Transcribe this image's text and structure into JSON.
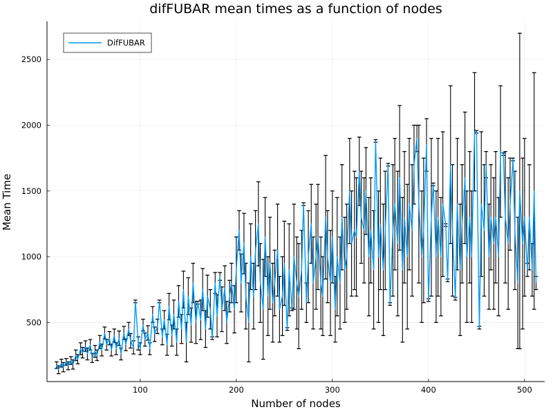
{
  "chart_data": {
    "type": "line",
    "title": "difFUBAR mean times as a function of nodes",
    "xlabel": "Number of nodes",
    "ylabel": "Mean Time",
    "xlim": [
      3,
      521
    ],
    "ylim": [
      50,
      2790
    ],
    "xticks": [
      100,
      200,
      300,
      400,
      500
    ],
    "yticks": [
      500,
      1000,
      1500,
      2000,
      2500
    ],
    "grid": true,
    "legend_position": "top-left",
    "line_color": "#009af9",
    "error_bar_color": "#000000",
    "error_bars": true,
    "series": [
      {
        "name": "DifFUBAR",
        "points": [
          [
            13,
            175,
            25
          ],
          [
            15,
            140,
            30
          ],
          [
            18,
            190,
            30
          ],
          [
            20,
            160,
            35
          ],
          [
            23,
            200,
            25
          ],
          [
            25,
            170,
            30
          ],
          [
            28,
            210,
            30
          ],
          [
            30,
            180,
            35
          ],
          [
            33,
            250,
            40
          ],
          [
            35,
            220,
            35
          ],
          [
            38,
            300,
            45
          ],
          [
            40,
            270,
            40
          ],
          [
            43,
            320,
            40
          ],
          [
            45,
            260,
            45
          ],
          [
            48,
            330,
            40
          ],
          [
            50,
            230,
            35
          ],
          [
            53,
            280,
            45
          ],
          [
            55,
            250,
            40
          ],
          [
            58,
            350,
            50
          ],
          [
            60,
            290,
            45
          ],
          [
            63,
            420,
            45
          ],
          [
            65,
            330,
            40
          ],
          [
            68,
            380,
            50
          ],
          [
            70,
            290,
            45
          ],
          [
            73,
            400,
            50
          ],
          [
            75,
            300,
            45
          ],
          [
            78,
            380,
            55
          ],
          [
            80,
            260,
            45
          ],
          [
            83,
            420,
            50
          ],
          [
            85,
            330,
            45
          ],
          [
            88,
            450,
            50
          ],
          [
            90,
            360,
            55
          ],
          [
            93,
            310,
            50
          ],
          [
            95,
            660,
            10
          ],
          [
            98,
            340,
            50
          ],
          [
            100,
            300,
            45
          ],
          [
            103,
            480,
            45
          ],
          [
            105,
            370,
            50
          ],
          [
            108,
            420,
            55
          ],
          [
            110,
            300,
            45
          ],
          [
            113,
            560,
            60
          ],
          [
            115,
            410,
            55
          ],
          [
            118,
            470,
            55
          ],
          [
            120,
            660,
            10
          ],
          [
            123,
            390,
            60
          ],
          [
            125,
            520,
            70
          ],
          [
            128,
            330,
            80
          ],
          [
            130,
            620,
            100
          ],
          [
            133,
            400,
            80
          ],
          [
            135,
            560,
            110
          ],
          [
            138,
            350,
            100
          ],
          [
            140,
            660,
            120
          ],
          [
            143,
            450,
            110
          ],
          [
            145,
            750,
            140
          ],
          [
            148,
            350,
            150
          ],
          [
            150,
            700,
            140
          ],
          [
            153,
            480,
            130
          ],
          [
            155,
            800,
            150
          ],
          [
            158,
            500,
            160
          ],
          [
            160,
            650,
            10
          ],
          [
            163,
            520,
            150
          ],
          [
            165,
            750,
            160
          ],
          [
            168,
            450,
            140
          ],
          [
            170,
            700,
            160
          ],
          [
            173,
            600,
            150
          ],
          [
            175,
            380,
            10
          ],
          [
            178,
            800,
            80
          ],
          [
            180,
            550,
            160
          ],
          [
            183,
            850,
            30
          ],
          [
            185,
            600,
            170
          ],
          [
            188,
            760,
            170
          ],
          [
            190,
            500,
            160
          ],
          [
            193,
            700,
            120
          ],
          [
            195,
            800,
            150
          ],
          [
            198,
            600,
            180
          ],
          [
            200,
            900,
            250
          ],
          [
            203,
            1200,
            150
          ],
          [
            205,
            800,
            220
          ],
          [
            208,
            1100,
            230
          ],
          [
            210,
            700,
            250
          ],
          [
            213,
            500,
            300
          ],
          [
            215,
            1000,
            250
          ],
          [
            218,
            700,
            250
          ],
          [
            220,
            1050,
            300
          ],
          [
            223,
            1250,
            320
          ],
          [
            225,
            800,
            300
          ],
          [
            228,
            600,
            380
          ],
          [
            230,
            1150,
            300
          ],
          [
            233,
            700,
            300
          ],
          [
            235,
            950,
            350
          ],
          [
            238,
            650,
            300
          ],
          [
            240,
            800,
            250
          ],
          [
            243,
            1050,
            350
          ],
          [
            245,
            600,
            250
          ],
          [
            248,
            700,
            300
          ],
          [
            250,
            950,
            320
          ],
          [
            253,
            450,
            10
          ],
          [
            255,
            900,
            350
          ],
          [
            258,
            600,
            10
          ],
          [
            260,
            1000,
            400
          ],
          [
            263,
            800,
            350
          ],
          [
            265,
            700,
            400
          ],
          [
            268,
            900,
            300
          ],
          [
            270,
            1400,
            10
          ],
          [
            273,
            650,
            150
          ],
          [
            275,
            1000,
            350
          ],
          [
            278,
            1250,
            300
          ],
          [
            280,
            800,
            350
          ],
          [
            283,
            1000,
            400
          ],
          [
            285,
            1150,
            400
          ],
          [
            288,
            800,
            350
          ],
          [
            290,
            700,
            300
          ],
          [
            293,
            1300,
            470
          ],
          [
            295,
            1000,
            350
          ],
          [
            298,
            800,
            400
          ],
          [
            300,
            1150,
            350
          ],
          [
            303,
            600,
            250
          ],
          [
            305,
            1000,
            450
          ],
          [
            308,
            800,
            350
          ],
          [
            310,
            1300,
            400
          ],
          [
            313,
            900,
            400
          ],
          [
            315,
            1000,
            400
          ],
          [
            318,
            1500,
            400
          ],
          [
            320,
            1100,
            400
          ],
          [
            323,
            1200,
            450
          ],
          [
            325,
            1150,
            450
          ],
          [
            328,
            1650,
            260
          ],
          [
            330,
            1300,
            350
          ],
          [
            333,
            1200,
            400
          ],
          [
            335,
            1500,
            330
          ],
          [
            338,
            1000,
            450
          ],
          [
            340,
            1200,
            400
          ],
          [
            343,
            900,
            450
          ],
          [
            345,
            1880,
            10
          ],
          [
            348,
            1000,
            500
          ],
          [
            350,
            1250,
            500
          ],
          [
            353,
            900,
            500
          ],
          [
            355,
            1200,
            450
          ],
          [
            358,
            1700,
            10
          ],
          [
            360,
            640,
            10
          ],
          [
            363,
            1200,
            500
          ],
          [
            365,
            1400,
            500
          ],
          [
            368,
            1100,
            550
          ],
          [
            370,
            1600,
            550
          ],
          [
            373,
            900,
            550
          ],
          [
            375,
            1300,
            500
          ],
          [
            378,
            1000,
            550
          ],
          [
            380,
            1400,
            500
          ],
          [
            383,
            1200,
            500
          ],
          [
            385,
            1700,
            300
          ],
          [
            388,
            1900,
            100
          ],
          [
            390,
            1400,
            600
          ],
          [
            393,
            1000,
            500
          ],
          [
            395,
            1200,
            550
          ],
          [
            398,
            1850,
            200
          ],
          [
            400,
            670,
            10
          ],
          [
            403,
            1300,
            600
          ],
          [
            405,
            1550,
            10
          ],
          [
            408,
            1000,
            500
          ],
          [
            410,
            1300,
            600
          ],
          [
            413,
            1000,
            450
          ],
          [
            415,
            1400,
            550
          ],
          [
            418,
            1240,
            10
          ],
          [
            420,
            820,
            10
          ],
          [
            423,
            1700,
            600
          ],
          [
            425,
            1200,
            500
          ],
          [
            428,
            680,
            10
          ],
          [
            430,
            1400,
            500
          ],
          [
            433,
            900,
            500
          ],
          [
            435,
            1250,
            450
          ],
          [
            438,
            1600,
            500
          ],
          [
            440,
            1000,
            500
          ],
          [
            443,
            1300,
            500
          ],
          [
            445,
            1000,
            500
          ],
          [
            448,
            1950,
            450
          ],
          [
            450,
            1950,
            10
          ],
          [
            453,
            460,
            10
          ],
          [
            455,
            1400,
            550
          ],
          [
            458,
            1200,
            500
          ],
          [
            460,
            1700,
            100
          ],
          [
            463,
            1000,
            400
          ],
          [
            465,
            1300,
            400
          ],
          [
            468,
            1100,
            500
          ],
          [
            470,
            1300,
            500
          ],
          [
            473,
            1000,
            450
          ],
          [
            475,
            1800,
            500
          ],
          [
            478,
            1780,
            10
          ],
          [
            480,
            1300,
            500
          ],
          [
            483,
            1100,
            500
          ],
          [
            485,
            1400,
            350
          ],
          [
            488,
            1740,
            10
          ],
          [
            490,
            1200,
            450
          ],
          [
            493,
            800,
            500
          ],
          [
            495,
            1500,
            1200
          ],
          [
            498,
            1100,
            650
          ],
          [
            500,
            1300,
            600
          ],
          [
            503,
            900,
            50
          ],
          [
            505,
            1300,
            400
          ],
          [
            508,
            900,
            200
          ],
          [
            510,
            1500,
            900
          ],
          [
            512,
            800,
            50
          ]
        ]
      }
    ]
  }
}
